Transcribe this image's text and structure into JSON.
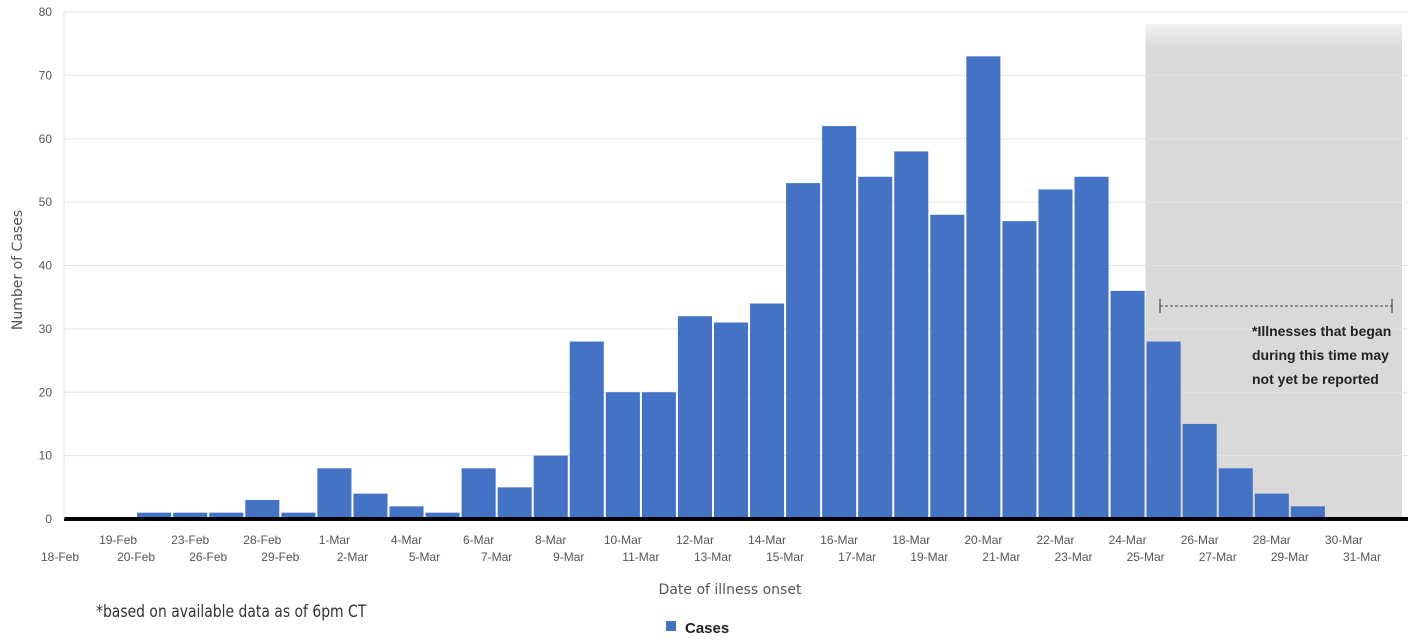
{
  "chart_data": {
    "type": "bar",
    "title": "",
    "xlabel": "Date of illness onset",
    "ylabel": "Number of Cases",
    "ylim": [
      0,
      80
    ],
    "yticks": [
      0,
      10,
      20,
      30,
      40,
      50,
      60,
      70,
      80
    ],
    "grid": true,
    "legend_position": "bottom-center",
    "series": [
      {
        "name": "Cases",
        "color": "#4472c4",
        "values": [
          0,
          0,
          1,
          1,
          1,
          3,
          1,
          8,
          4,
          2,
          1,
          8,
          5,
          10,
          28,
          20,
          20,
          32,
          31,
          34,
          53,
          62,
          54,
          58,
          48,
          73,
          47,
          52,
          54,
          36,
          28,
          15,
          8,
          4,
          2,
          0,
          0
        ]
      }
    ],
    "categories": [
      "18-Feb",
      "19-Feb",
      "20-Feb",
      "23-Feb",
      "26-Feb",
      "28-Feb",
      "29-Feb",
      "1-Mar",
      "2-Mar",
      "4-Mar",
      "5-Mar",
      "6-Mar",
      "7-Mar",
      "8-Mar",
      "9-Mar",
      "10-Mar",
      "11-Mar",
      "12-Mar",
      "13-Mar",
      "14-Mar",
      "15-Mar",
      "16-Mar",
      "17-Mar",
      "18-Mar",
      "19-Mar",
      "20-Mar",
      "21-Mar",
      "22-Mar",
      "23-Mar",
      "24-Mar",
      "25-Mar",
      "26-Mar",
      "27-Mar",
      "28-Mar",
      "29-Mar",
      "30-Mar",
      "31-Mar"
    ],
    "shaded_region": {
      "from_category": "25-Mar",
      "to_category": "31-Mar",
      "color": "#d9d9d9",
      "note_lines": [
        "*Illnesses that began",
        "during this time may",
        "not yet be reported"
      ]
    }
  },
  "footnote": "*based on available data as of 6pm CT"
}
